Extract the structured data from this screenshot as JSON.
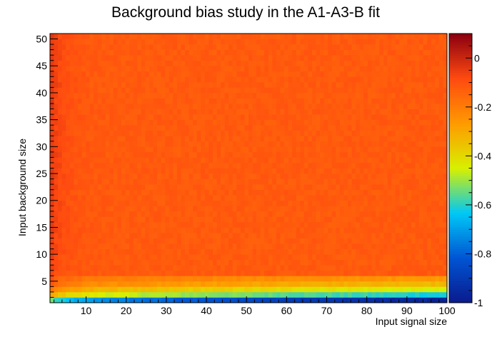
{
  "chart_data": {
    "type": "heatmap",
    "title": "Background bias study in the A1-A3-B fit",
    "xlabel": "Input signal size",
    "ylabel": "Input background size",
    "xlim": [
      1,
      100
    ],
    "ylim": [
      1,
      51
    ],
    "x_ticks": [
      10,
      20,
      30,
      40,
      50,
      60,
      70,
      80,
      90,
      100
    ],
    "y_ticks": [
      5,
      10,
      15,
      20,
      25,
      30,
      35,
      40,
      45,
      50
    ],
    "x_bins": 100,
    "y_bins": 50,
    "color_scale": {
      "min": -1,
      "max": 0.1,
      "ticks": [
        0,
        -0.2,
        -0.4,
        -0.6,
        -0.8,
        -1
      ],
      "palette": [
        "#0a1a8c",
        "#0055d4",
        "#00c8f5",
        "#d8f000",
        "#ff9a00",
        "#ff4a10",
        "#8a0010"
      ]
    },
    "description_of_values": {
      "bulk_plateau": -0.12,
      "low_background_rows": [
        {
          "background": 1,
          "value_at_low_signal": -0.62,
          "value_at_high_signal": -0.98
        },
        {
          "background": 2,
          "value_at_low_signal": -0.38,
          "value_at_high_signal": -0.62
        },
        {
          "background": 3,
          "value_at_low_signal": -0.27,
          "value_at_high_signal": -0.45
        },
        {
          "background": 4,
          "value_at_low_signal": -0.2,
          "value_at_high_signal": -0.33
        },
        {
          "background": 5,
          "value_at_low_signal": -0.17,
          "value_at_high_signal": -0.26
        }
      ],
      "low_signal_edge": -0.04
    }
  }
}
